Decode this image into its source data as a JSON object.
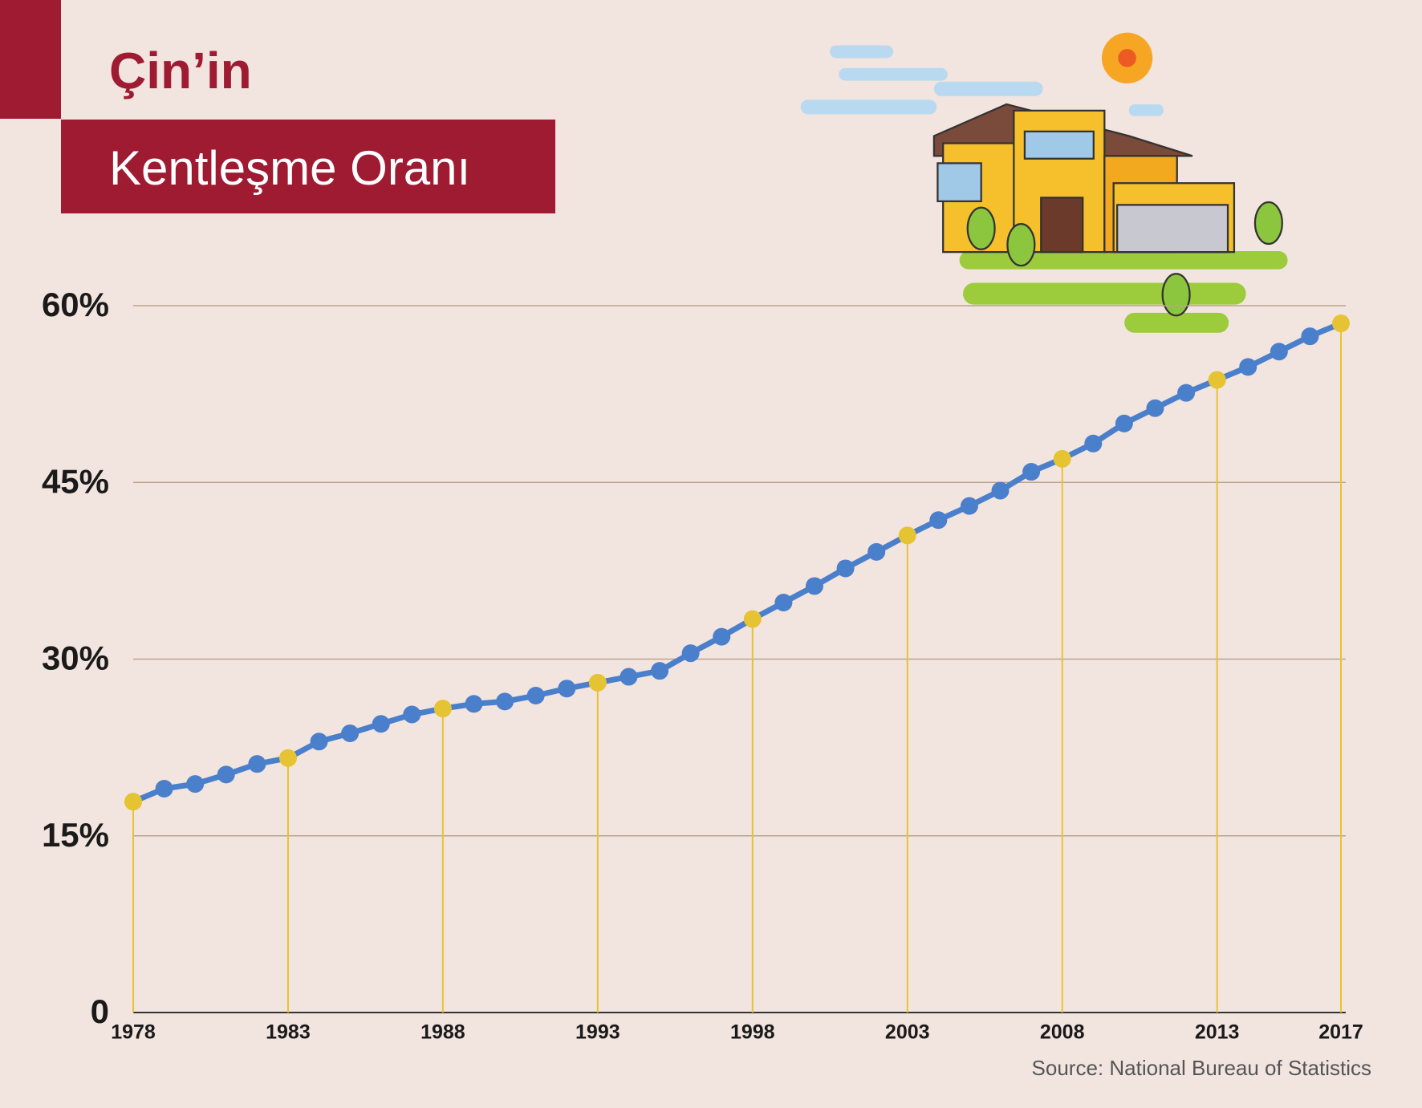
{
  "chart_data": {
    "type": "line",
    "title": "Çin’in",
    "subtitle": "Kentleşme Oranı",
    "source": "Source: National Bureau of Statistics",
    "x": [
      1978,
      1979,
      1980,
      1981,
      1982,
      1983,
      1984,
      1985,
      1986,
      1987,
      1988,
      1989,
      1990,
      1991,
      1992,
      1993,
      1994,
      1995,
      1996,
      1997,
      1998,
      1999,
      2000,
      2001,
      2002,
      2003,
      2004,
      2005,
      2006,
      2007,
      2008,
      2009,
      2010,
      2011,
      2012,
      2013,
      2014,
      2015,
      2016,
      2017
    ],
    "values": [
      17.9,
      19.0,
      19.4,
      20.2,
      21.1,
      21.6,
      23.0,
      23.7,
      24.5,
      25.3,
      25.8,
      26.2,
      26.4,
      26.9,
      27.5,
      28.0,
      28.5,
      29.0,
      30.5,
      31.9,
      33.4,
      34.8,
      36.2,
      37.7,
      39.1,
      40.5,
      41.8,
      43.0,
      44.3,
      45.9,
      47.0,
      48.3,
      50.0,
      51.3,
      52.6,
      53.7,
      54.8,
      56.1,
      57.4,
      58.5
    ],
    "color": "#4a7fcb",
    "highlight_color": "#e6c332",
    "xlim": [
      1978,
      2017
    ],
    "xticks": [
      1978,
      1983,
      1988,
      1993,
      1998,
      2003,
      2008,
      2013,
      2017
    ],
    "ylim": [
      0,
      60
    ],
    "yticks": [
      0,
      {
        "value": 15,
        "label": "15%"
      },
      {
        "value": 30,
        "label": "30%"
      },
      {
        "value": 45,
        "label": "45%"
      },
      {
        "value": 60,
        "label": "60%"
      }
    ],
    "grid": true
  }
}
